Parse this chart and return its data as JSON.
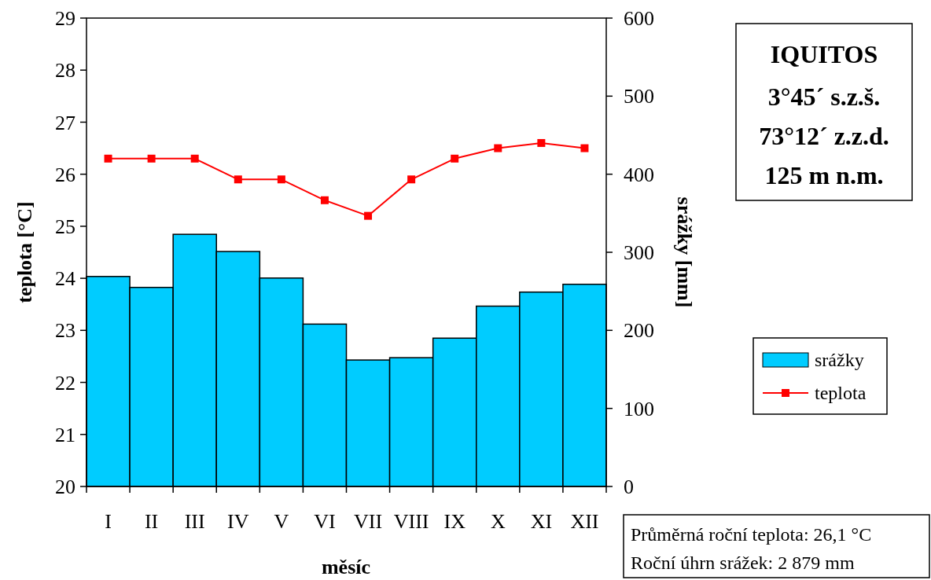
{
  "chart_data": {
    "type": "bar",
    "title": "IQUITOS",
    "xlabel": "měsíc",
    "ylabel": "teplota [°C]",
    "y2label": "srážky [mm]",
    "annotations": [
      "3°45´ s.z.š.",
      "73°12´ z.z.d.",
      "125 m n.m.",
      "Průměrná roční teplota: 26,1 °C",
      "Roční úhrn srážek: 2 879 mm"
    ],
    "categories": [
      "I",
      "II",
      "III",
      "IV",
      "V",
      "VI",
      "VII",
      "VIII",
      "IX",
      "X",
      "XI",
      "XII"
    ],
    "series": [
      {
        "name": "srážky",
        "axis": "y2",
        "color": "#00ccff",
        "values": [
          269,
          255,
          323,
          301,
          267,
          208,
          162,
          165,
          190,
          231,
          249,
          259
        ]
      },
      {
        "name": "teplota",
        "type": "line",
        "axis": "y",
        "color": "#ff0000",
        "marker": "square",
        "values": [
          26.3,
          26.3,
          26.3,
          25.9,
          25.9,
          25.5,
          25.2,
          25.9,
          26.3,
          26.5,
          26.6,
          26.5
        ]
      }
    ],
    "ylim": [
      20,
      29
    ],
    "yticks": [
      20,
      21,
      22,
      23,
      24,
      25,
      26,
      27,
      28,
      29
    ],
    "y2lim": [
      0,
      600
    ],
    "y2ticks": [
      0,
      100,
      200,
      300,
      400,
      500,
      600
    ],
    "legend": "right",
    "grid": false
  }
}
